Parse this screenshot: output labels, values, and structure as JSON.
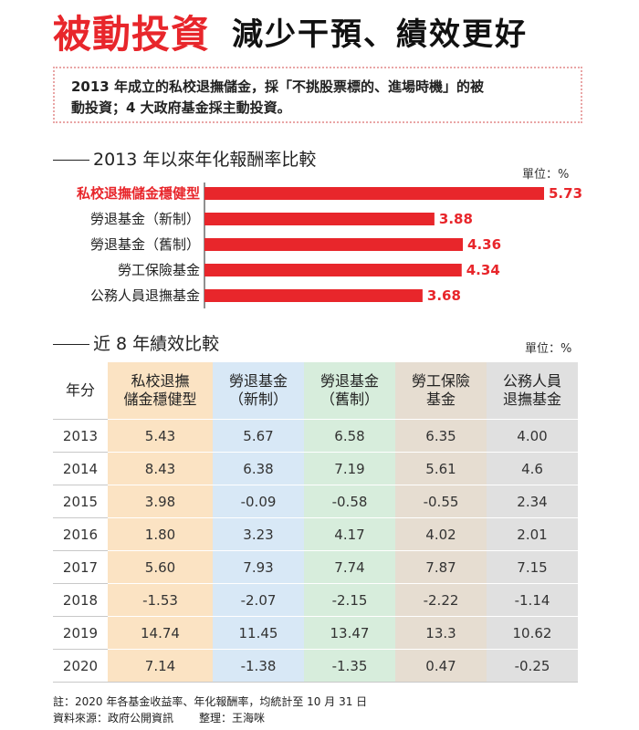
{
  "header": {
    "title": "被動投資",
    "subtitle": "減少干預、績效更好"
  },
  "intro": {
    "line1": "2013 年成立的私校退撫儲金，採「不挑股票標的、進場時機」的被",
    "line2": "動投資；4 大政府基金採主動投資。"
  },
  "section1": {
    "title": "2013 年以來年化報酬率比較",
    "unit": "單位：%"
  },
  "section2": {
    "title": "近 8 年績效比較",
    "unit": "單位：%"
  },
  "chart_data": {
    "type": "bar",
    "orientation": "horizontal",
    "title": "2013 年以來年化報酬率比較",
    "unit": "單位：%",
    "categories": [
      "私校退撫儲金穩健型",
      "勞退基金（新制）",
      "勞退基金（舊制）",
      "勞工保險基金",
      "公務人員退撫基金"
    ],
    "values": [
      5.73,
      3.88,
      4.36,
      4.34,
      3.68
    ],
    "value_labels": [
      "5.73",
      "3.88",
      "4.36",
      "4.34",
      "3.68"
    ],
    "highlight_index": 0,
    "xlim": [
      0,
      5.73
    ],
    "colors": {
      "bar": "#e8262b",
      "highlight_label": "#e8262b",
      "label": "#222222"
    }
  },
  "table": {
    "year_header": "年分",
    "columns": [
      "私校退撫\n儲金穩健型",
      "勞退基金\n（新制）",
      "勞退基金\n（舊制）",
      "勞工保險\n基金",
      "公務人員\n退撫基金"
    ],
    "rows": [
      {
        "year": "2013",
        "values": [
          "5.43",
          "5.67",
          "6.58",
          "6.35",
          "4.00"
        ]
      },
      {
        "year": "2014",
        "values": [
          "8.43",
          "6.38",
          "7.19",
          "5.61",
          "4.6"
        ]
      },
      {
        "year": "2015",
        "values": [
          "3.98",
          "-0.09",
          "-0.58",
          "-0.55",
          "2.34"
        ]
      },
      {
        "year": "2016",
        "values": [
          "1.80",
          "3.23",
          "4.17",
          "4.02",
          "2.01"
        ]
      },
      {
        "year": "2017",
        "values": [
          "5.60",
          "7.93",
          "7.74",
          "7.87",
          "7.15"
        ]
      },
      {
        "year": "2018",
        "values": [
          "-1.53",
          "-2.07",
          "-2.15",
          "-2.22",
          "-1.14"
        ]
      },
      {
        "year": "2019",
        "values": [
          "14.74",
          "11.45",
          "13.47",
          "13.3",
          "10.62"
        ]
      },
      {
        "year": "2020",
        "values": [
          "7.14",
          "-1.38",
          "-1.35",
          "0.47",
          "-0.25"
        ]
      }
    ]
  },
  "footnote": {
    "note": "註：2020 年各基金收益率、年化報酬率，均統計至 10 月 31 日",
    "source": "資料來源：政府公開資訊",
    "editor": "整理：王海咪"
  }
}
